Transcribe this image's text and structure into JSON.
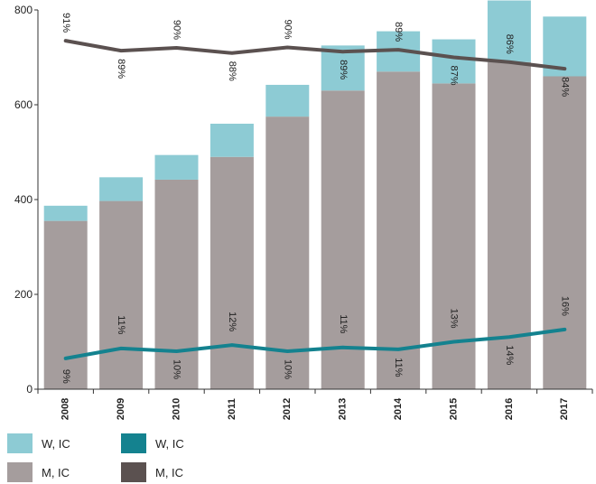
{
  "chart_data": {
    "type": "bar",
    "categories": [
      "2008",
      "2009",
      "2010",
      "2011",
      "2012",
      "2013",
      "2014",
      "2015",
      "2016",
      "2017"
    ],
    "ylim": [
      0,
      800
    ],
    "yticks": [
      0,
      200,
      400,
      600,
      800
    ],
    "grid": false,
    "legend_position": "bottom-left",
    "colors": {
      "bar_m": "#a59d9d",
      "bar_w": "#8dcbd4",
      "line_w": "#14828f",
      "line_m": "#5b5150"
    },
    "series": [
      {
        "name": "M, IC",
        "kind": "bar",
        "values": [
          355,
          397,
          442,
          490,
          575,
          630,
          670,
          645,
          690,
          660
        ]
      },
      {
        "name": "W, IC",
        "kind": "bar",
        "values": [
          32,
          50,
          52,
          70,
          67,
          95,
          85,
          93,
          130,
          126
        ]
      },
      {
        "name": "W, IC",
        "kind": "line",
        "values": [
          65,
          86,
          80,
          93,
          80,
          88,
          84,
          100,
          110,
          126
        ],
        "labels": [
          "9%",
          "11%",
          "10%",
          "12%",
          "10%",
          "11%",
          "11%",
          "13%",
          "14%",
          "16%"
        ]
      },
      {
        "name": "M, IC",
        "kind": "line",
        "values": [
          735,
          714,
          720,
          709,
          721,
          712,
          716,
          700,
          690,
          676
        ],
        "labels": [
          "91%",
          "89%",
          "90%",
          "88%",
          "90%",
          "89%",
          "89%",
          "87%",
          "86%",
          "84%"
        ]
      }
    ]
  },
  "legend": [
    {
      "label": "W, IC",
      "color": "#8dcbd4"
    },
    {
      "label": "W, IC",
      "color": "#14828f"
    },
    {
      "label": "M, IC",
      "color": "#a59d9d"
    },
    {
      "label": "M, IC",
      "color": "#5b5150"
    }
  ]
}
